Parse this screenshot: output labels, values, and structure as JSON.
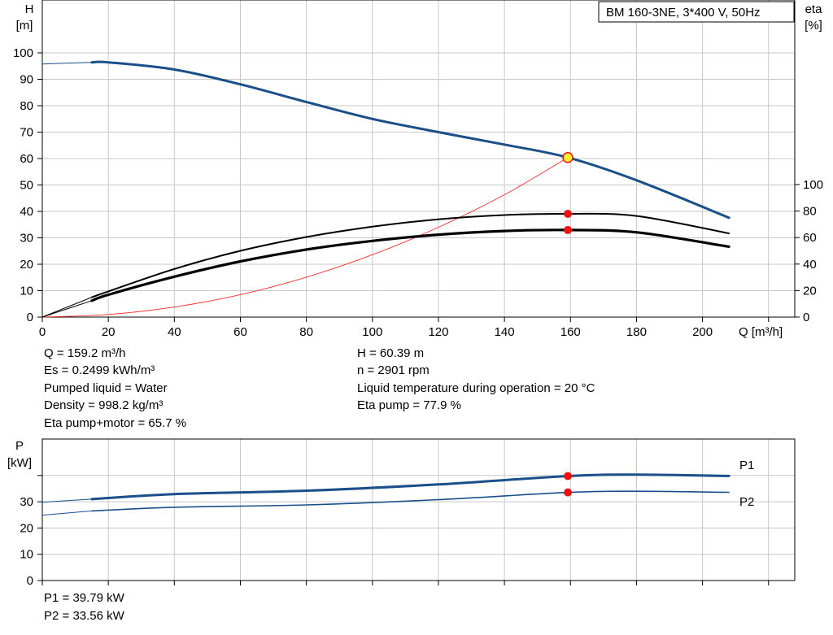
{
  "colors": {
    "curve_blue": "#1a4f8a",
    "curve_black": "#000000",
    "system_curve": "#ff2a2a",
    "grid": "#c8c8c8",
    "point_red": "#ee1111",
    "duty_point_fill": "#ffee33"
  },
  "info": {
    "q": "Q = 159.2 m³/h",
    "es": "Es = 0.2499 kWh/m³",
    "liquid": "Pumped liquid = Water",
    "density": "Density = 998.2 kg/m³",
    "eta_pm": "Eta pump+motor = 65.7 %",
    "h": "H = 60.39 m",
    "n": "n = 2901 rpm",
    "temp": "Liquid temperature during operation = 20 °C",
    "eta_p": "Eta pump = 77.9 %",
    "p1": "P1 = 39.79 kW",
    "p2": "P2 = 33.56 kW"
  },
  "chart_data": [
    {
      "type": "line",
      "title": "BM 160-3NE, 3*400 V, 50Hz",
      "xlabel": "Q [m³/h]",
      "ylabel": "H [m]",
      "y2label": "eta [%]",
      "xlim": [
        0,
        222
      ],
      "ylim": [
        0,
        105
      ],
      "y2lim": [
        0,
        100
      ],
      "xticks": [
        0,
        20,
        40,
        60,
        80,
        100,
        120,
        140,
        160,
        180,
        200
      ],
      "yticks": [
        0,
        10,
        20,
        30,
        40,
        50,
        60,
        70,
        80,
        90,
        100
      ],
      "y2ticks": [
        0,
        20,
        40,
        60,
        80,
        100
      ],
      "grid": true,
      "series": [
        {
          "kind": "head",
          "axis": "H",
          "style": "blue",
          "x": [
            0,
            15,
            20,
            40,
            60,
            80,
            100,
            120,
            140,
            159.2,
            180,
            208
          ],
          "y": [
            95.8,
            96.4,
            96.4,
            93.7,
            88.1,
            81.4,
            75.0,
            70.0,
            65.3,
            60.39,
            51.8,
            37.6
          ]
        },
        {
          "kind": "system",
          "axis": "H",
          "style": "thin-red",
          "x": [
            0,
            20,
            40,
            60,
            80,
            100,
            120,
            140,
            159.2
          ],
          "y": [
            0,
            1.0,
            3.8,
            8.5,
            15.1,
            23.6,
            34.0,
            46.3,
            60.39
          ]
        },
        {
          "kind": "efficiency",
          "axis": "eta",
          "style": "black",
          "x": [
            0,
            15,
            20,
            40,
            60,
            80,
            100,
            120,
            140,
            159.2,
            180,
            208
          ],
          "y": [
            0,
            15.0,
            19.4,
            36.3,
            50.0,
            60.4,
            68.2,
            73.8,
            77.0,
            77.9,
            76.3,
            63.2
          ]
        },
        {
          "kind": "efficiency",
          "axis": "eta",
          "style": "black-thick",
          "x": [
            0,
            15,
            20,
            40,
            60,
            80,
            100,
            120,
            140,
            159.2,
            180,
            208
          ],
          "y": [
            0,
            12.4,
            16.9,
            30.5,
            42.0,
            51.0,
            57.5,
            62.2,
            65.0,
            65.7,
            64.0,
            53.1
          ]
        }
      ],
      "points": [
        {
          "axis": "H",
          "x": 159.2,
          "y": 60.39,
          "style": "duty"
        },
        {
          "axis": "eta",
          "x": 159.2,
          "y": 77.9,
          "style": "red"
        },
        {
          "axis": "eta",
          "x": 159.2,
          "y": 65.7,
          "style": "red"
        }
      ]
    },
    {
      "type": "line",
      "ylabel": "P [kW]",
      "xlim": [
        0,
        222
      ],
      "ylim": [
        0,
        45
      ],
      "xticks": [
        0,
        20,
        40,
        60,
        80,
        100,
        120,
        140,
        160,
        180,
        200
      ],
      "yticks": [
        0,
        10,
        20,
        30
      ],
      "grid": true,
      "series": [
        {
          "name": "P1",
          "style": "blue-thick",
          "x": [
            0,
            15,
            40,
            80,
            120,
            159.2,
            180,
            208
          ],
          "y": [
            29.8,
            31.0,
            32.9,
            34.2,
            36.6,
            39.79,
            40.3,
            39.8
          ]
        },
        {
          "name": "P2",
          "style": "blue-thin",
          "x": [
            0,
            15,
            40,
            80,
            120,
            159.2,
            180,
            208
          ],
          "y": [
            24.9,
            26.5,
            27.9,
            28.8,
            30.8,
            33.56,
            34.0,
            33.6
          ]
        }
      ],
      "points": [
        {
          "x": 159.2,
          "y": 39.79,
          "style": "red"
        },
        {
          "x": 159.2,
          "y": 33.56,
          "style": "red"
        }
      ]
    }
  ]
}
